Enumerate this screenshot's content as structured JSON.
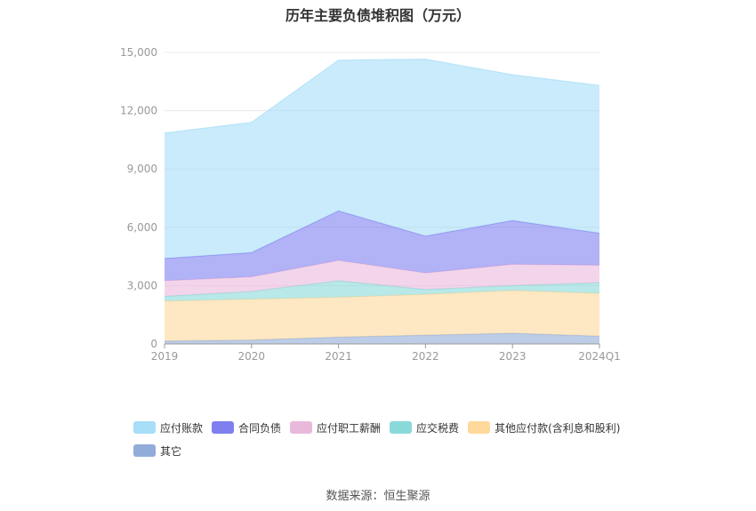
{
  "chart_data": {
    "type": "area",
    "stacked": true,
    "title": "历年主要负债堆积图（万元）",
    "categories": [
      "2019",
      "2020",
      "2021",
      "2022",
      "2023",
      "2024Q1"
    ],
    "ylim": [
      0,
      15000
    ],
    "yticks": [
      0,
      3000,
      6000,
      9000,
      12000,
      15000
    ],
    "ytick_labels": [
      "0",
      "3,000",
      "6,000",
      "9,000",
      "12,000",
      "15,000"
    ],
    "grid": true,
    "legend_position": "bottom",
    "series": [
      {
        "name": "其它",
        "color": "#91acd9",
        "values": [
          150,
          200,
          350,
          450,
          550,
          400
        ]
      },
      {
        "name": "其他应付款(含利息和股利)",
        "color": "#fed99b",
        "values": [
          2050,
          2100,
          2050,
          2100,
          2200,
          2200
        ]
      },
      {
        "name": "应交税费",
        "color": "#8ad9d9",
        "values": [
          250,
          400,
          850,
          250,
          250,
          550
        ]
      },
      {
        "name": "应付职工薪酬",
        "color": "#e9b9dc",
        "values": [
          800,
          750,
          1050,
          850,
          1100,
          900
        ]
      },
      {
        "name": "合同负债",
        "color": "#7f7ff0",
        "values": [
          1150,
          1250,
          2550,
          1900,
          2250,
          1650
        ]
      },
      {
        "name": "应付账款",
        "color": "#a7def8",
        "values": [
          6450,
          6700,
          7750,
          9100,
          7500,
          7600
        ]
      }
    ]
  },
  "legend": {
    "items": [
      {
        "label": "应付账款",
        "color": "#a7def8"
      },
      {
        "label": "合同负债",
        "color": "#7f7ff0"
      },
      {
        "label": "应付职工薪酬",
        "color": "#e9b9dc"
      },
      {
        "label": "应交税费",
        "color": "#8ad9d9"
      },
      {
        "label": "其他应付款(含利息和股利)",
        "color": "#fed99b"
      },
      {
        "label": "其它",
        "color": "#91acd9"
      }
    ]
  },
  "source": "数据来源：恒生聚源"
}
